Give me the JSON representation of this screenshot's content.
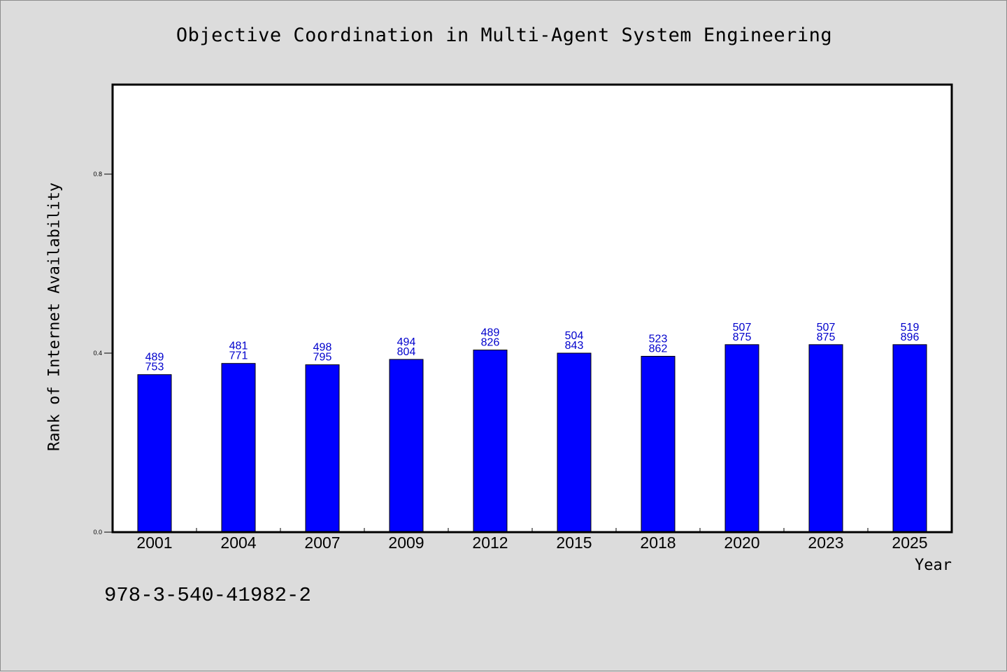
{
  "colors": {
    "page_background": "#dcdcdc",
    "plot_background": "#ffffff",
    "bar_fill": "#0000ff",
    "data_label": "#0000cc"
  },
  "footer": {
    "code": "978-3-540-41982-2"
  },
  "chart_data": {
    "type": "bar",
    "title": "Objective Coordination in Multi-Agent System Engineering",
    "xlabel": "Year",
    "ylabel": "Rank of Internet Availability",
    "ylim": [
      0,
      1.0
    ],
    "yticks": [
      "0.0",
      "0.4",
      "0.8"
    ],
    "ytick_values": [
      0.0,
      0.4,
      0.8
    ],
    "grid": false,
    "legend": "none",
    "categories": [
      "2001",
      "2004",
      "2007",
      "2009",
      "2012",
      "2015",
      "2018",
      "2020",
      "2023",
      "2025"
    ],
    "values": [
      0.352,
      0.377,
      0.374,
      0.386,
      0.407,
      0.4,
      0.393,
      0.419,
      0.419,
      0.419
    ],
    "labels_top": [
      "489",
      "481",
      "498",
      "494",
      "489",
      "504",
      "523",
      "507",
      "507",
      "519"
    ],
    "labels_bottom": [
      "753",
      "771",
      "795",
      "804",
      "826",
      "843",
      "862",
      "875",
      "875",
      "896"
    ]
  }
}
